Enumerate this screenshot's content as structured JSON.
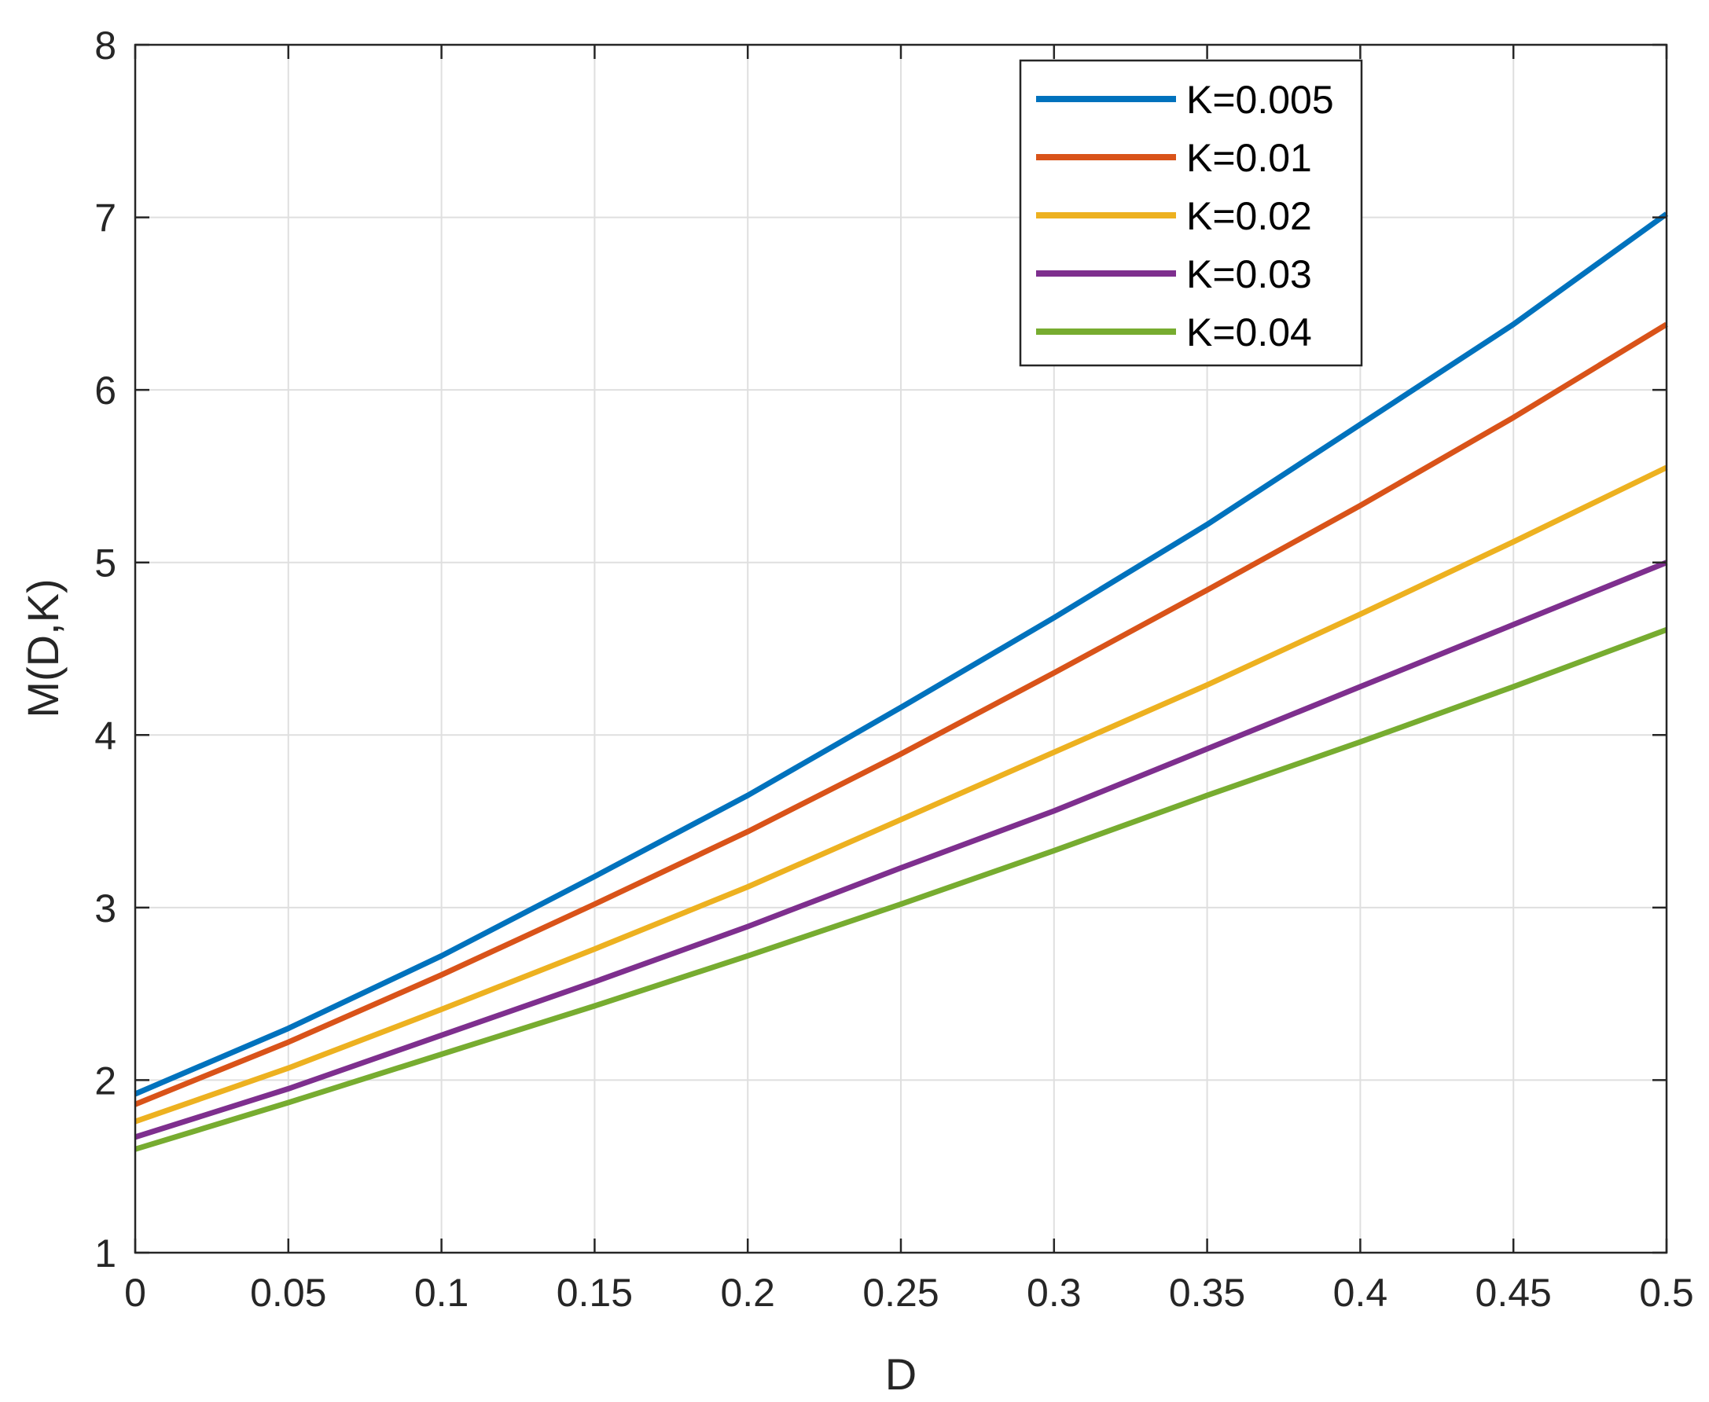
{
  "chart_data": {
    "type": "line",
    "title": "",
    "xlabel": "D",
    "ylabel": "M(D,K)",
    "xlim": [
      0,
      0.5
    ],
    "ylim": [
      1,
      8
    ],
    "grid": true,
    "legend_position": "top-right",
    "x_ticks": [
      "0",
      "0.05",
      "0.1",
      "0.15",
      "0.2",
      "0.25",
      "0.3",
      "0.35",
      "0.4",
      "0.45",
      "0.5"
    ],
    "y_ticks": [
      "1",
      "2",
      "3",
      "4",
      "5",
      "6",
      "7",
      "8"
    ],
    "x": [
      0,
      0.05,
      0.1,
      0.15,
      0.2,
      0.25,
      0.3,
      0.35,
      0.4,
      0.45,
      0.5
    ],
    "series": [
      {
        "name": "K=0.005",
        "color": "#0072BD",
        "values": [
          1.92,
          2.3,
          2.72,
          3.18,
          3.65,
          4.16,
          4.68,
          5.22,
          5.8,
          6.38,
          7.02
        ]
      },
      {
        "name": "K=0.01",
        "color": "#D95319",
        "values": [
          1.86,
          2.22,
          2.61,
          3.02,
          3.44,
          3.89,
          4.36,
          4.84,
          5.33,
          5.84,
          6.38
        ]
      },
      {
        "name": "K=0.02",
        "color": "#EDB120",
        "values": [
          1.76,
          2.07,
          2.41,
          2.76,
          3.12,
          3.51,
          3.9,
          4.29,
          4.7,
          5.12,
          5.55
        ]
      },
      {
        "name": "K=0.03",
        "color": "#7E2F8E",
        "values": [
          1.67,
          1.95,
          2.26,
          2.57,
          2.89,
          3.23,
          3.56,
          3.92,
          4.28,
          4.64,
          5.0
        ]
      },
      {
        "name": "K=0.04",
        "color": "#77AC30",
        "values": [
          1.6,
          1.87,
          2.15,
          2.43,
          2.72,
          3.02,
          3.33,
          3.65,
          3.96,
          4.28,
          4.61
        ]
      }
    ]
  }
}
